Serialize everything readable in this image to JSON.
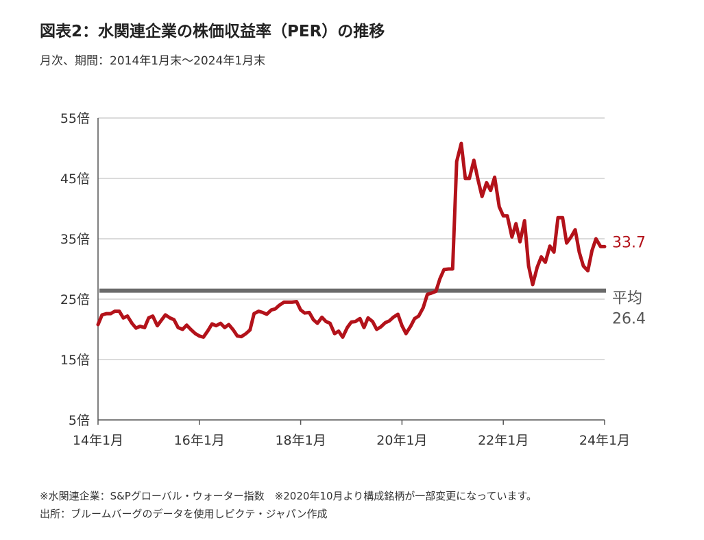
{
  "title": "図表2：水関連企業の株価収益率（PER）の推移",
  "subtitle": "月次、期間：2014年1月末～2024年1月末",
  "notes": [
    "※水関連企業：S&Pグローバル・ウォーター指数　※2020年10月より構成銘柄が一部変更になっています。",
    "出所：ブルームバーグのデータを使用しピクテ・ジャパン作成"
  ],
  "colors": {
    "series": "#b3121a",
    "average": "#6b6b6b",
    "grid": "#cfcfcf",
    "axis": "#555555"
  },
  "chart_data": {
    "type": "line",
    "ylim": [
      5,
      55
    ],
    "yticks": [
      5,
      15,
      25,
      35,
      45,
      55
    ],
    "ytick_labels": [
      "5倍",
      "15倍",
      "25倍",
      "35倍",
      "45倍",
      "55倍"
    ],
    "xlim": [
      2014.0,
      2024.0
    ],
    "xticks": [
      2014,
      2016,
      2018,
      2020,
      2022,
      2024
    ],
    "xtick_labels": [
      "14年1月",
      "16年1月",
      "18年1月",
      "20年1月",
      "22年1月",
      "24年1月"
    ],
    "grid": true,
    "average": {
      "value": 26.4,
      "label": "平均",
      "value_label": "26.4"
    },
    "last_value_label": "33.7",
    "series": [
      {
        "x": [
          2014.0,
          2014.08,
          2014.17,
          2014.25,
          2014.33,
          2014.42,
          2014.5,
          2014.58,
          2014.67,
          2014.75,
          2014.83,
          2014.92,
          2015.0,
          2015.08,
          2015.17,
          2015.25,
          2015.33,
          2015.42,
          2015.5,
          2015.58,
          2015.67,
          2015.75,
          2015.83,
          2015.92,
          2016.0,
          2016.08,
          2016.17,
          2016.25,
          2016.33,
          2016.42,
          2016.5,
          2016.58,
          2016.67,
          2016.75,
          2016.83,
          2016.92,
          2017.0,
          2017.08,
          2017.17,
          2017.25,
          2017.33,
          2017.42,
          2017.5,
          2017.58,
          2017.67,
          2017.75,
          2017.83,
          2017.92,
          2018.0,
          2018.08,
          2018.17,
          2018.25,
          2018.33,
          2018.42,
          2018.5,
          2018.58,
          2018.67,
          2018.75,
          2018.83,
          2018.92,
          2019.0,
          2019.08,
          2019.17,
          2019.25,
          2019.33,
          2019.42,
          2019.5,
          2019.58,
          2019.67,
          2019.75,
          2019.83,
          2019.92,
          2020.0,
          2020.08,
          2020.17,
          2020.25,
          2020.33,
          2020.42,
          2020.5,
          2020.58,
          2020.67,
          2020.75,
          2020.83,
          2020.92,
          2021.0,
          2021.08,
          2021.17,
          2021.25,
          2021.33,
          2021.42,
          2021.5,
          2021.58,
          2021.67,
          2021.75,
          2021.83,
          2021.92,
          2022.0,
          2022.08,
          2022.17,
          2022.25,
          2022.33,
          2022.42,
          2022.5,
          2022.58,
          2022.67,
          2022.75,
          2022.83,
          2022.92,
          2023.0,
          2023.08,
          2023.17,
          2023.25,
          2023.33,
          2023.42,
          2023.5,
          2023.58,
          2023.67,
          2023.75,
          2023.83,
          2023.92,
          2024.0
        ],
        "values": [
          20.8,
          22.4,
          22.6,
          22.6,
          23.0,
          23.0,
          21.9,
          22.2,
          21.0,
          20.2,
          20.5,
          20.3,
          21.9,
          22.2,
          20.6,
          21.5,
          22.4,
          21.9,
          21.6,
          20.3,
          20.0,
          20.7,
          20.0,
          19.3,
          18.9,
          18.7,
          19.8,
          20.9,
          20.6,
          21.0,
          20.3,
          20.8,
          19.9,
          18.9,
          18.8,
          19.3,
          19.9,
          22.6,
          23.0,
          22.8,
          22.5,
          23.2,
          23.4,
          24.0,
          24.5,
          24.5,
          24.5,
          24.6,
          23.2,
          22.7,
          22.8,
          21.6,
          21.0,
          22.0,
          21.3,
          21.0,
          19.3,
          19.7,
          18.7,
          20.3,
          21.2,
          21.3,
          21.8,
          20.3,
          21.9,
          21.3,
          20.0,
          20.4,
          21.1,
          21.4,
          22.0,
          22.5,
          20.6,
          19.3,
          20.5,
          21.8,
          22.2,
          23.6,
          25.8,
          26.0,
          26.3,
          28.4,
          29.9,
          30.0,
          30.0,
          47.8,
          50.8,
          45.0,
          45.0,
          48.0,
          44.8,
          42.0,
          44.3,
          43.0,
          45.2,
          40.3,
          38.8,
          38.8,
          35.3,
          37.5,
          34.5,
          38.0,
          30.5,
          27.4,
          30.3,
          32.0,
          31.1,
          33.8,
          32.8,
          38.5,
          38.5,
          34.3,
          35.2,
          36.5,
          32.8,
          30.5,
          29.7,
          33.0,
          35.0,
          33.7,
          33.7
        ]
      }
    ]
  }
}
